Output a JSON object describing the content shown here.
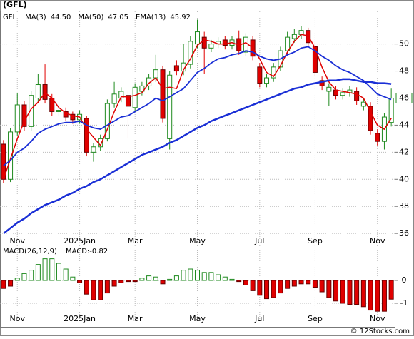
{
  "footer": "© 12Stocks.com",
  "chart_data": [
    {
      "type": "candlestick",
      "title": "(GFL)",
      "symbol": "GFL",
      "categories": [
        null,
        null,
        "Nov",
        null,
        null,
        null,
        null,
        null,
        null,
        null,
        null,
        "2025Jan",
        null,
        null,
        null,
        null,
        null,
        null,
        null,
        "Mar",
        null,
        null,
        null,
        null,
        null,
        null,
        null,
        null,
        "May",
        null,
        null,
        null,
        null,
        null,
        null,
        null,
        null,
        "Jul",
        null,
        null,
        null,
        null,
        null,
        null,
        null,
        "Sep",
        null,
        null,
        null,
        null,
        null,
        null,
        null,
        null,
        "Nov",
        null,
        null
      ],
      "open": [
        42.6,
        40.0,
        43.5,
        45.5,
        43.9,
        46.0,
        47.0,
        46.0,
        45.0,
        45.0,
        44.8,
        44.4,
        44.5,
        42.0,
        42.4,
        43.0,
        45.6,
        46.0,
        46.2,
        45.3,
        46.5,
        46.9,
        47.5,
        48.1,
        43.0,
        48.4,
        48.0,
        48.5,
        50.0,
        50.5,
        49.7,
        50.0,
        50.3,
        49.9,
        50.4,
        49.4,
        50.3,
        48.3,
        47.1,
        47.5,
        48.3,
        49.5,
        50.4,
        50.7,
        51.0,
        49.8,
        47.3,
        46.5,
        46.6,
        46.2,
        46.4,
        46.5,
        45.4,
        45.4,
        43.4,
        42.8,
        44.2
      ],
      "high": [
        42.9,
        43.8,
        46.4,
        45.8,
        46.5,
        47.8,
        48.5,
        46.3,
        45.4,
        45.3,
        45.0,
        45.1,
        44.7,
        42.7,
        43.3,
        45.9,
        47.2,
        46.8,
        46.5,
        47.1,
        47.2,
        47.8,
        49.2,
        48.4,
        48.0,
        48.8,
        50.0,
        50.6,
        51.8,
        50.9,
        50.3,
        50.5,
        50.6,
        50.6,
        51.0,
        50.8,
        50.6,
        48.6,
        47.8,
        48.6,
        49.8,
        50.9,
        51.1,
        51.3,
        51.2,
        50.1,
        47.6,
        47.1,
        46.9,
        46.7,
        46.9,
        46.8,
        46.0,
        45.7,
        43.7,
        44.9,
        46.7
      ],
      "low": [
        39.7,
        39.8,
        43.2,
        43.6,
        43.6,
        45.7,
        45.6,
        44.7,
        44.7,
        44.3,
        44.1,
        44.1,
        41.7,
        41.3,
        42.1,
        42.8,
        45.3,
        45.7,
        43.0,
        45.0,
        46.2,
        46.6,
        47.2,
        44.2,
        42.2,
        47.7,
        47.7,
        48.2,
        49.7,
        47.8,
        49.4,
        49.7,
        49.6,
        49.6,
        49.2,
        49.1,
        48.8,
        46.8,
        46.8,
        47.2,
        48.0,
        49.2,
        50.1,
        50.4,
        49.8,
        47.6,
        46.6,
        45.4,
        45.9,
        45.9,
        46.1,
        45.5,
        45.1,
        43.3,
        42.5,
        42.2,
        43.9
      ],
      "close": [
        40.0,
        43.5,
        45.5,
        43.9,
        46.2,
        47.0,
        45.9,
        45.0,
        45.1,
        44.6,
        44.4,
        44.8,
        42.0,
        42.4,
        43.0,
        45.6,
        46.3,
        46.5,
        45.4,
        46.8,
        46.9,
        47.5,
        48.1,
        44.5,
        47.7,
        48.0,
        48.6,
        50.2,
        50.9,
        49.7,
        50.0,
        50.2,
        49.9,
        50.3,
        49.5,
        50.5,
        49.1,
        47.1,
        47.5,
        48.3,
        49.5,
        50.5,
        50.7,
        51.0,
        50.1,
        47.9,
        46.9,
        46.8,
        46.2,
        46.4,
        46.6,
        45.8,
        45.7,
        43.6,
        42.8,
        44.6,
        46.0
      ],
      "up_color": "#1f8a1f",
      "down_color": "#e00000",
      "series": [
        {
          "name": "MA(3)",
          "value_label": "44.50",
          "color": "#e00000",
          "width": 1.5,
          "values": [
            40.0,
            41.5,
            43.0,
            44.3,
            45.2,
            45.7,
            46.4,
            46.0,
            45.3,
            44.9,
            44.7,
            44.6,
            43.7,
            43.1,
            42.5,
            43.7,
            45.0,
            46.1,
            46.1,
            46.2,
            46.4,
            47.1,
            47.5,
            46.7,
            46.8,
            46.7,
            48.1,
            48.9,
            49.9,
            50.3,
            50.2,
            50.0,
            50.0,
            50.1,
            49.9,
            50.1,
            49.7,
            48.9,
            47.9,
            47.6,
            48.4,
            49.4,
            50.2,
            50.7,
            50.6,
            49.7,
            48.3,
            47.2,
            46.6,
            46.5,
            46.4,
            46.3,
            46.0,
            45.0,
            44.0,
            43.7,
            44.5
          ]
        },
        {
          "name": "MA(50)",
          "value_label": "47.05",
          "color": "#1a2fd6",
          "width": 2.5,
          "values": [
            36.0,
            36.4,
            36.8,
            37.1,
            37.5,
            37.8,
            38.1,
            38.3,
            38.5,
            38.8,
            39.0,
            39.3,
            39.5,
            39.8,
            40.0,
            40.3,
            40.6,
            40.9,
            41.2,
            41.5,
            41.8,
            42.0,
            42.2,
            42.4,
            42.7,
            42.9,
            43.2,
            43.5,
            43.8,
            44.0,
            44.3,
            44.5,
            44.7,
            44.9,
            45.1,
            45.3,
            45.5,
            45.7,
            45.9,
            46.1,
            46.3,
            46.5,
            46.7,
            46.8,
            47.0,
            47.1,
            47.2,
            47.3,
            47.3,
            47.4,
            47.4,
            47.3,
            47.2,
            47.2,
            47.1,
            47.1,
            47.05
          ]
        },
        {
          "name": "EMA(13)",
          "value_label": "45.92",
          "color": "#1a2fd6",
          "width": 1.8,
          "values": [
            41.0,
            41.4,
            42.0,
            42.3,
            42.8,
            43.4,
            43.7,
            43.9,
            44.1,
            44.2,
            44.2,
            44.3,
            44.0,
            43.8,
            43.7,
            44.0,
            44.3,
            44.6,
            44.7,
            45.0,
            45.3,
            45.6,
            46.0,
            45.8,
            46.1,
            46.4,
            46.7,
            47.3,
            47.9,
            48.2,
            48.6,
            48.9,
            49.0,
            49.2,
            49.3,
            49.5,
            49.4,
            49.1,
            48.9,
            48.8,
            48.9,
            49.2,
            49.4,
            49.7,
            49.8,
            49.5,
            49.1,
            48.8,
            48.4,
            48.1,
            47.9,
            47.6,
            47.3,
            46.8,
            46.3,
            46.1,
            45.9
          ]
        }
      ],
      "price_marker": 46,
      "ylim": [
        35.85,
        52.3
      ],
      "yticks": [
        36,
        38,
        40,
        42,
        44,
        46,
        48,
        50
      ],
      "grid": true
    },
    {
      "type": "bar",
      "title": "MACD(26,12,9)",
      "legend_label": "MACD:-0.82",
      "categories": [
        null,
        null,
        "Nov",
        null,
        null,
        null,
        null,
        null,
        null,
        null,
        null,
        "2025Jan",
        null,
        null,
        null,
        null,
        null,
        null,
        null,
        "Mar",
        null,
        null,
        null,
        null,
        null,
        null,
        null,
        null,
        "May",
        null,
        null,
        null,
        null,
        null,
        null,
        null,
        null,
        "Jul",
        null,
        null,
        null,
        null,
        null,
        null,
        null,
        "Sep",
        null,
        null,
        null,
        null,
        null,
        null,
        null,
        null,
        "Nov",
        null,
        null
      ],
      "values": [
        -0.35,
        -0.25,
        0.1,
        0.3,
        0.45,
        0.7,
        0.95,
        0.95,
        0.75,
        0.5,
        0.15,
        -0.1,
        -0.6,
        -0.85,
        -0.85,
        -0.55,
        -0.25,
        -0.1,
        -0.05,
        -0.05,
        0.1,
        0.2,
        0.15,
        -0.15,
        0.05,
        0.2,
        0.45,
        0.5,
        0.45,
        0.35,
        0.35,
        0.25,
        0.15,
        0.05,
        -0.05,
        -0.2,
        -0.45,
        -0.65,
        -0.8,
        -0.75,
        -0.55,
        -0.35,
        -0.25,
        -0.15,
        -0.15,
        -0.3,
        -0.5,
        -0.75,
        -0.9,
        -1.0,
        -1.05,
        -1.05,
        -1.15,
        -1.3,
        -1.35,
        -1.35,
        -0.82
      ],
      "up_color": "#1f8a1f",
      "down_color": "#e00000",
      "ylim": [
        -1.97,
        1.47
      ],
      "yticks": [
        -1,
        0
      ],
      "grid": true
    }
  ]
}
